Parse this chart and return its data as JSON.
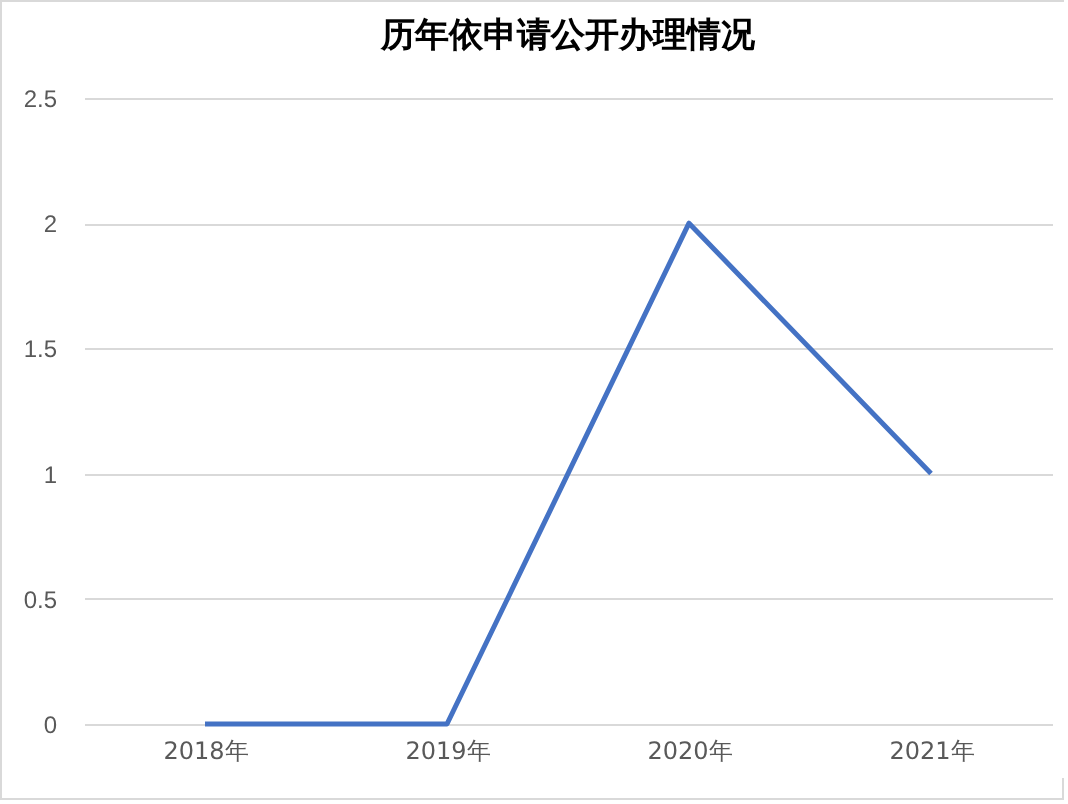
{
  "chart_data": {
    "type": "line",
    "title": "历年依申请公开办理情况",
    "categories": [
      "2018年",
      "2019年",
      "2020年",
      "2021年"
    ],
    "series": [
      {
        "color": "#4472c4",
        "values": [
          0,
          0,
          2,
          1
        ]
      }
    ],
    "ylim": [
      0,
      2.5
    ],
    "yticks": [
      0,
      0.5,
      1,
      1.5,
      2,
      2.5
    ],
    "grid": "y",
    "legend": false,
    "marker": "none"
  }
}
